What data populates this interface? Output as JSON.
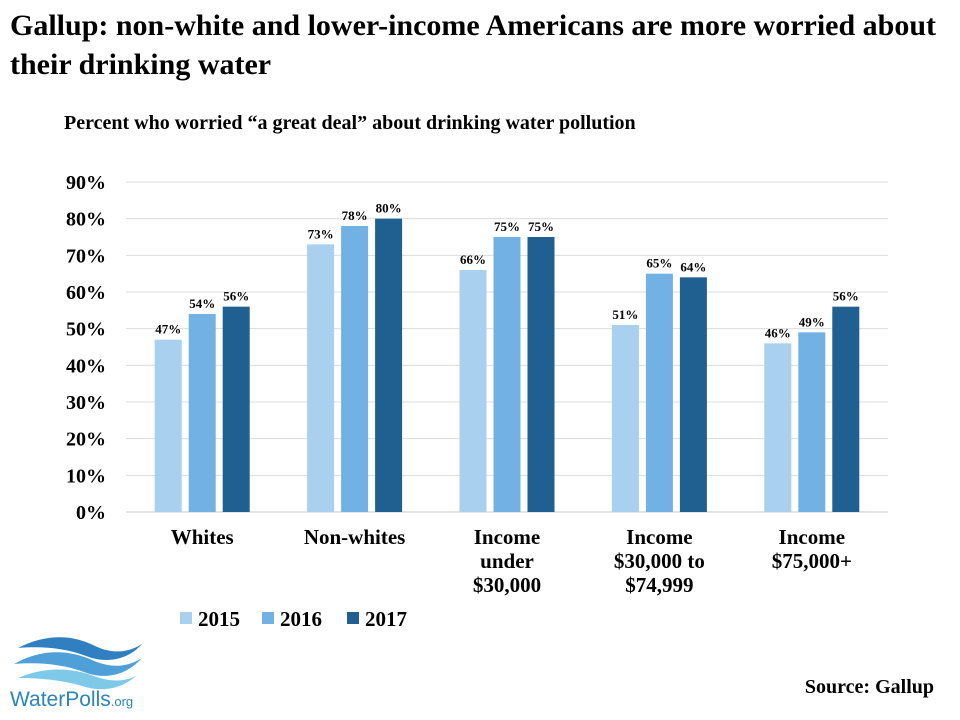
{
  "title": "Gallup: non-white and lower-income Americans are more worried about their drinking water",
  "subtitle": "Percent who worried “a great deal” about drinking water pollution",
  "source": "Source: Gallup",
  "logo": {
    "name": "WaterPolls",
    "suffix": ".org"
  },
  "colors": {
    "2015": "#a9d0ee",
    "2016": "#72b1e3",
    "2017": "#1f6091"
  },
  "chart_data": {
    "type": "bar",
    "title": "Percent who worried “a great deal” about drinking water pollution",
    "categories": [
      [
        "Whites"
      ],
      [
        "Non-whites"
      ],
      [
        "Income",
        "under",
        "$30,000"
      ],
      [
        "Income",
        "$30,000 to",
        "$74,999"
      ],
      [
        "Income",
        "$75,000+"
      ]
    ],
    "series": [
      {
        "name": "2015",
        "values": [
          47,
          73,
          66,
          51,
          46
        ],
        "labels": [
          "47%",
          "73%",
          "66%",
          "51%",
          "46%"
        ]
      },
      {
        "name": "2016",
        "values": [
          54,
          78,
          75,
          65,
          49
        ],
        "labels": [
          "54%",
          "78%",
          "75%",
          "65%",
          "49%"
        ]
      },
      {
        "name": "2017",
        "values": [
          56,
          80,
          75,
          64,
          56
        ],
        "labels": [
          "56%",
          "80%",
          "75%",
          "64%",
          "56%"
        ]
      }
    ],
    "ylim": [
      0,
      90
    ],
    "yticks": [
      0,
      10,
      20,
      30,
      40,
      50,
      60,
      70,
      80,
      90
    ],
    "ytick_labels": [
      "0%",
      "10%",
      "20%",
      "30%",
      "40%",
      "50%",
      "60%",
      "70%",
      "80%",
      "90%"
    ],
    "grid": true,
    "legend": "bottom-left"
  }
}
